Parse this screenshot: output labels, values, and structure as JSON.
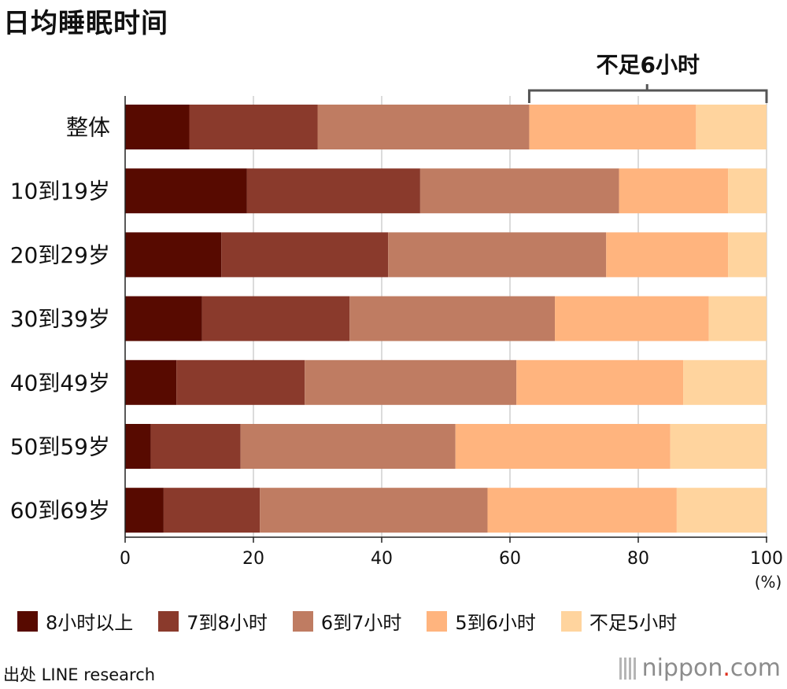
{
  "title": "日均睡眠时间",
  "source": "出处  LINE research",
  "brand": {
    "name": "nippon",
    "dot": ".",
    "tld": "com"
  },
  "chart_data": {
    "type": "bar",
    "orientation": "horizontal",
    "stacked": true,
    "categories": [
      "整体",
      "10到19岁",
      "20到29岁",
      "30到39岁",
      "40到49岁",
      "50到59岁",
      "60到69岁"
    ],
    "series": [
      {
        "name": "8小时以上",
        "color": "#570a00",
        "values": [
          10,
          19,
          15,
          12,
          8,
          4,
          6
        ]
      },
      {
        "name": "7到8小时",
        "color": "#8a3a2c",
        "values": [
          20,
          27,
          26,
          23,
          20,
          14,
          15
        ]
      },
      {
        "name": "6到7小时",
        "color": "#bf7c62",
        "values": [
          33,
          31,
          34,
          32,
          33,
          33.5,
          35.5
        ]
      },
      {
        "name": "5到6小时",
        "color": "#ffb47e",
        "values": [
          26,
          17,
          19,
          24,
          26,
          33.5,
          29.5
        ]
      },
      {
        "name": "不足5小时",
        "color": "#ffd49e",
        "values": [
          11,
          6,
          6,
          9,
          13,
          15,
          14
        ]
      }
    ],
    "xlim": [
      0,
      100
    ],
    "xticks": [
      0,
      20,
      40,
      60,
      80,
      100
    ],
    "xunit": "(%)",
    "grid": true,
    "legend": "bottom",
    "annotation": {
      "text": "不足6小时",
      "from": 63,
      "to": 100
    }
  }
}
